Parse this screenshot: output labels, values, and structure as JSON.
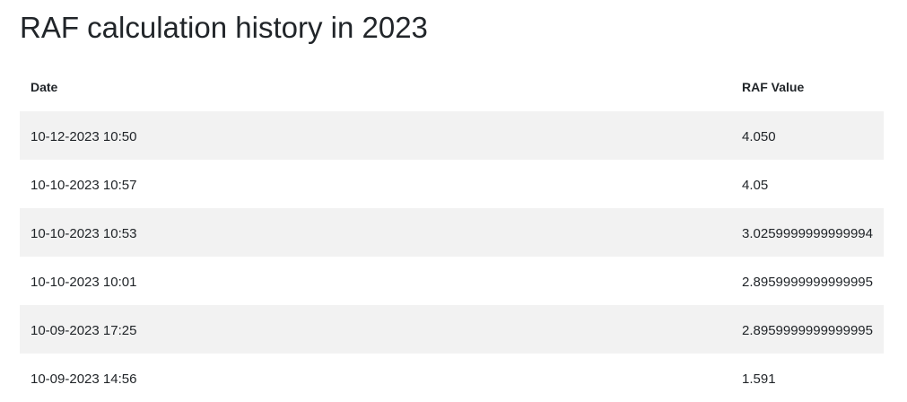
{
  "title": "RAF calculation history in 2023",
  "table": {
    "headers": [
      "Date",
      "RAF Value"
    ],
    "rows": [
      {
        "date": "10-12-2023 10:50",
        "value": "4.050"
      },
      {
        "date": "10-10-2023 10:57",
        "value": "4.05"
      },
      {
        "date": "10-10-2023 10:53",
        "value": "3.0259999999999994"
      },
      {
        "date": "10-10-2023 10:01",
        "value": "2.8959999999999995"
      },
      {
        "date": "10-09-2023 17:25",
        "value": "2.8959999999999995"
      },
      {
        "date": "10-09-2023 14:56",
        "value": "1.591"
      }
    ]
  }
}
